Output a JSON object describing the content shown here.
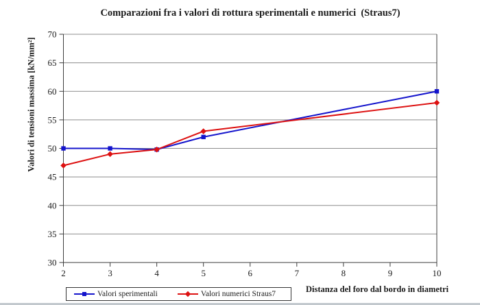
{
  "chart_data": {
    "type": "line",
    "title": "Comparazioni fra i valori di rottura sperimentali e numerici  (Straus7)",
    "xlabel": "Distanza del foro dal bordo in diametri",
    "ylabel": "Valori di tensioni massima [kN/mm²]",
    "x": [
      2,
      3,
      4,
      5,
      10
    ],
    "series": [
      {
        "name": "Valori sperimentali",
        "color": "#1414cc",
        "marker": "square",
        "values": [
          50,
          50,
          49.8,
          52,
          60
        ]
      },
      {
        "name": "Valori numerici Straus7",
        "color": "#dd1111",
        "marker": "diamond",
        "values": [
          47,
          49,
          49.8,
          53,
          58
        ]
      }
    ],
    "xlim": [
      2,
      10
    ],
    "ylim": [
      30,
      70
    ],
    "xticks": [
      2,
      3,
      4,
      5,
      6,
      7,
      8,
      9,
      10
    ],
    "yticks": [
      30,
      35,
      40,
      45,
      50,
      55,
      60,
      65,
      70
    ],
    "grid": "horizontal-only",
    "legend_position": "bottom-left",
    "colors": {
      "gridline": "#8c8c8c",
      "axis": "#3c3c3c",
      "tick_text": "#1a1a1a"
    }
  }
}
